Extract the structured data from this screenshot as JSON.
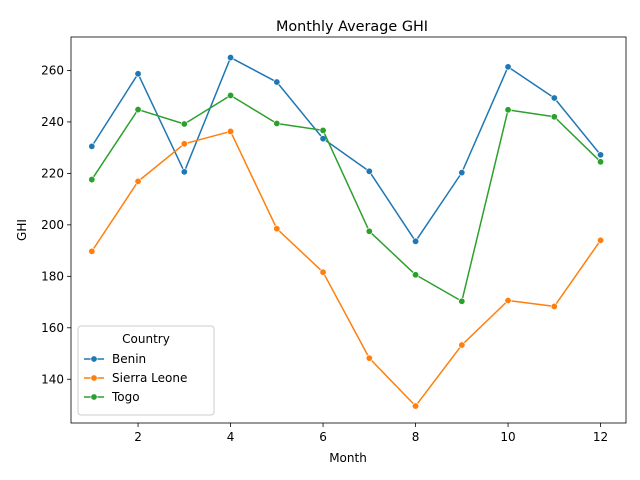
{
  "chart_data": {
    "type": "line",
    "title": "Monthly Average GHI",
    "xlabel": "Month",
    "ylabel": "GHI",
    "xlim": [
      0.55,
      12.55
    ],
    "ylim": [
      123,
      273
    ],
    "xticks": [
      2,
      4,
      6,
      8,
      10,
      12
    ],
    "yticks": [
      140,
      160,
      180,
      200,
      220,
      240,
      260
    ],
    "grid": false,
    "legend": {
      "title": "Country",
      "placement": "lower-left"
    },
    "x": [
      1,
      2,
      3,
      4,
      5,
      6,
      7,
      8,
      9,
      10,
      11,
      12
    ],
    "series": [
      {
        "name": "Benin",
        "color": "#1f77b4",
        "values": [
          230.5,
          258.7,
          220.6,
          265.0,
          255.5,
          233.5,
          220.8,
          193.6,
          220.3,
          261.4,
          249.3,
          227.2
        ]
      },
      {
        "name": "Sierra Leone",
        "color": "#ff7f0e",
        "values": [
          189.7,
          216.9,
          231.5,
          236.3,
          198.5,
          181.6,
          148.2,
          129.6,
          153.3,
          170.6,
          168.3,
          194.0
        ]
      },
      {
        "name": "Togo",
        "color": "#2ca02c",
        "values": [
          217.6,
          244.8,
          239.2,
          250.3,
          239.4,
          236.7,
          197.5,
          180.6,
          170.3,
          244.7,
          242.0,
          224.5
        ]
      }
    ]
  }
}
